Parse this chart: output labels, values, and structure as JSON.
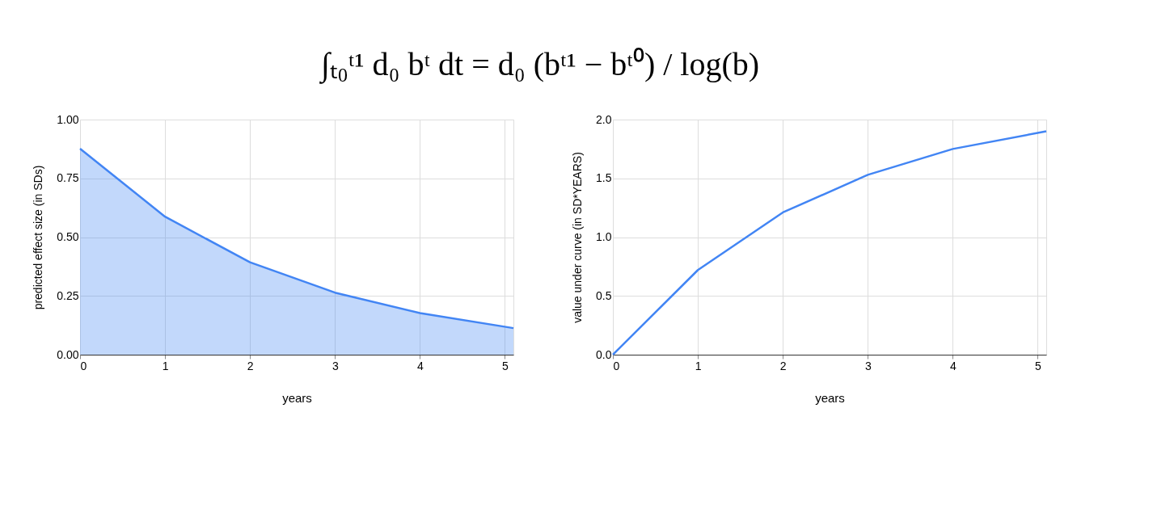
{
  "chart_data": [
    {
      "type": "area",
      "title": "∫ₜ₀ᵗ¹ d₀ bᵗ dt = d₀ (bᵗ¹ − bᵗ⁰) / log(b)",
      "xlabel": "years",
      "ylabel": "predicted effect size (in SDs)",
      "x": [
        0,
        1,
        2,
        3,
        4,
        5.1
      ],
      "series": [
        {
          "color": "#4285f4",
          "values": [
            0.876,
            0.587,
            0.393,
            0.264,
            0.177,
            0.113
          ]
        }
      ],
      "xlim": [
        0,
        5.1
      ],
      "xticks": [
        0,
        1,
        2,
        3,
        4,
        5
      ],
      "ylim": [
        0,
        1
      ],
      "yticks": [
        {
          "value": 0,
          "label": "0.00"
        },
        {
          "value": 0.25,
          "label": "0.25"
        },
        {
          "value": 0.5,
          "label": "0.50"
        },
        {
          "value": 0.75,
          "label": "0.75"
        },
        {
          "value": 1,
          "label": "1.00"
        }
      ],
      "grid": true
    },
    {
      "type": "line",
      "xlabel": "years",
      "ylabel": "value under curve (in SD*YEARS)",
      "x": [
        0,
        1,
        2,
        3,
        4,
        5.1
      ],
      "series": [
        {
          "color": "#4285f4",
          "values": [
            0,
            0.72,
            1.21,
            1.53,
            1.75,
            1.9
          ]
        }
      ],
      "xlim": [
        0,
        5.1
      ],
      "xticks": [
        0,
        1,
        2,
        3,
        4,
        5
      ],
      "ylim": [
        0,
        2
      ],
      "yticks": [
        {
          "value": 0,
          "label": "0.0"
        },
        {
          "value": 0.5,
          "label": "0.5"
        },
        {
          "value": 1,
          "label": "1.0"
        },
        {
          "value": 1.5,
          "label": "1.5"
        },
        {
          "value": 2,
          "label": "2.0"
        }
      ],
      "grid": true
    }
  ]
}
